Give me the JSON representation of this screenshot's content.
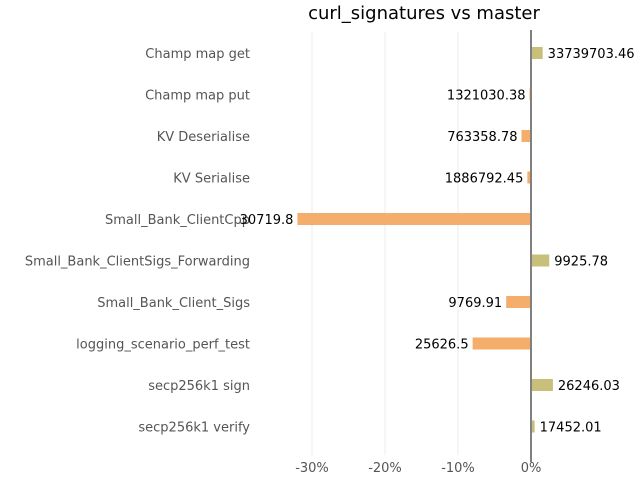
{
  "chart_data": {
    "type": "bar",
    "orientation": "horizontal",
    "title": "curl_signatures vs master",
    "xlabel": "",
    "ylabel": "",
    "x_unit": "percent change",
    "xlim": [
      -0.32,
      0.0
    ],
    "xticks": [
      -0.3,
      -0.2,
      -0.1,
      0.0
    ],
    "xtick_labels": [
      "-30%",
      "-20%",
      "-10%",
      "0%"
    ],
    "grid": "vertical",
    "categories": [
      "Champ map get",
      "Champ map put",
      "KV Deserialise",
      "KV Serialise",
      "Small_Bank_ClientCpp",
      "Small_Bank_ClientSigs_Forwarding",
      "Small_Bank_Client_Sigs",
      "logging_scenario_perf_test",
      "secp256k1 sign",
      "secp256k1 verify"
    ],
    "values": [
      0.016,
      -0.002,
      -0.013,
      -0.005,
      -0.32,
      0.025,
      -0.034,
      -0.08,
      0.03,
      0.005
    ],
    "value_labels": [
      "33739703.46",
      "1321030.38",
      "763358.78",
      "1886792.45",
      "30719.8",
      "9925.78",
      "9769.91",
      "25626.5",
      "26246.03",
      "17452.01"
    ],
    "colors": {
      "positive": "#c7bf7a",
      "negative": "#f5ad6c",
      "zero_line": "#808080",
      "grid": "#eeeeee",
      "text": "#555555"
    }
  }
}
